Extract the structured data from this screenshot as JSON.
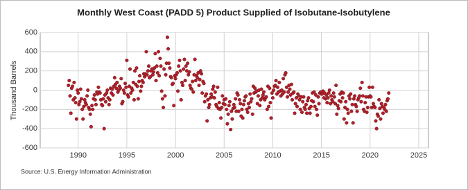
{
  "chart_data": {
    "type": "scatter",
    "title": "Monthly West Coast (PADD 5) Product Supplied of Isobutane-Isobutylene",
    "y_label": "Thousand Barrels",
    "source": "Source: U.S. Energy Information Administration",
    "color": "#b3202a",
    "grid": true,
    "xlim": [
      1986.1,
      2026
    ],
    "xticks": [
      1990,
      1995,
      2000,
      2005,
      2010,
      2015,
      2020,
      2025
    ],
    "ylim": [
      -600,
      600
    ],
    "yticks": [
      -600,
      -400,
      -200,
      0,
      200,
      400,
      600
    ],
    "x": [
      1989,
      1989.08,
      1989.17,
      1989.25,
      1989.33,
      1989.42,
      1989.5,
      1989.58,
      1989.67,
      1989.75,
      1989.83,
      1989.92,
      1990,
      1990.08,
      1990.17,
      1990.25,
      1990.33,
      1990.42,
      1990.5,
      1990.58,
      1990.67,
      1990.75,
      1990.83,
      1990.92,
      1991,
      1991.08,
      1991.17,
      1991.25,
      1991.33,
      1991.42,
      1991.5,
      1991.58,
      1991.67,
      1991.75,
      1991.83,
      1991.92,
      1992,
      1992.08,
      1992.17,
      1992.25,
      1992.33,
      1992.42,
      1992.5,
      1992.58,
      1992.67,
      1992.75,
      1992.83,
      1992.92,
      1993,
      1993.08,
      1993.17,
      1993.25,
      1993.33,
      1993.42,
      1993.5,
      1993.58,
      1993.67,
      1993.75,
      1993.83,
      1993.92,
      1994,
      1994.08,
      1994.17,
      1994.25,
      1994.33,
      1994.42,
      1994.5,
      1994.58,
      1994.67,
      1994.75,
      1994.83,
      1994.92,
      1995,
      1995.08,
      1995.17,
      1995.25,
      1995.33,
      1995.42,
      1995.5,
      1995.58,
      1995.67,
      1995.75,
      1995.83,
      1995.92,
      1996,
      1996.08,
      1996.17,
      1996.25,
      1996.33,
      1996.42,
      1996.5,
      1996.58,
      1996.67,
      1996.75,
      1996.83,
      1996.92,
      1997,
      1997.08,
      1997.17,
      1997.25,
      1997.33,
      1997.42,
      1997.5,
      1997.58,
      1997.67,
      1997.75,
      1997.83,
      1997.92,
      1998,
      1998.08,
      1998.17,
      1998.25,
      1998.33,
      1998.42,
      1998.5,
      1998.58,
      1998.67,
      1998.75,
      1998.83,
      1998.92,
      1999,
      1999.08,
      1999.17,
      1999.25,
      1999.33,
      1999.42,
      1999.5,
      1999.58,
      1999.67,
      1999.75,
      1999.83,
      1999.92,
      2000,
      2000.08,
      2000.17,
      2000.25,
      2000.33,
      2000.42,
      2000.5,
      2000.58,
      2000.67,
      2000.75,
      2000.83,
      2000.92,
      2001,
      2001.08,
      2001.17,
      2001.25,
      2001.33,
      2001.42,
      2001.5,
      2001.58,
      2001.67,
      2001.75,
      2001.83,
      2001.92,
      2002,
      2002.08,
      2002.17,
      2002.25,
      2002.33,
      2002.42,
      2002.5,
      2002.58,
      2002.67,
      2002.75,
      2002.83,
      2002.92,
      2003,
      2003.08,
      2003.17,
      2003.25,
      2003.33,
      2003.42,
      2003.5,
      2003.58,
      2003.67,
      2003.75,
      2003.83,
      2003.92,
      2004,
      2004.08,
      2004.17,
      2004.25,
      2004.33,
      2004.42,
      2004.5,
      2004.58,
      2004.67,
      2004.75,
      2004.83,
      2004.92,
      2005,
      2005.08,
      2005.17,
      2005.25,
      2005.33,
      2005.42,
      2005.5,
      2005.58,
      2005.67,
      2005.75,
      2005.83,
      2005.92,
      2006,
      2006.08,
      2006.17,
      2006.25,
      2006.33,
      2006.42,
      2006.5,
      2006.58,
      2006.67,
      2006.75,
      2006.83,
      2006.92,
      2007,
      2007.08,
      2007.17,
      2007.25,
      2007.33,
      2007.42,
      2007.5,
      2007.58,
      2007.67,
      2007.75,
      2007.83,
      2007.92,
      2008,
      2008.08,
      2008.17,
      2008.25,
      2008.33,
      2008.42,
      2008.5,
      2008.58,
      2008.67,
      2008.75,
      2008.83,
      2008.92,
      2009,
      2009.08,
      2009.17,
      2009.25,
      2009.33,
      2009.42,
      2009.5,
      2009.58,
      2009.67,
      2009.75,
      2009.83,
      2009.92,
      2010,
      2010.08,
      2010.17,
      2010.25,
      2010.33,
      2010.42,
      2010.5,
      2010.58,
      2010.67,
      2010.75,
      2010.83,
      2010.92,
      2011,
      2011.08,
      2011.17,
      2011.25,
      2011.33,
      2011.42,
      2011.5,
      2011.58,
      2011.67,
      2011.75,
      2011.83,
      2011.92,
      2012,
      2012.08,
      2012.17,
      2012.25,
      2012.33,
      2012.42,
      2012.5,
      2012.58,
      2012.67,
      2012.75,
      2012.83,
      2012.92,
      2013,
      2013.08,
      2013.17,
      2013.25,
      2013.33,
      2013.42,
      2013.5,
      2013.58,
      2013.67,
      2013.75,
      2013.83,
      2013.92,
      2014,
      2014.08,
      2014.17,
      2014.25,
      2014.33,
      2014.42,
      2014.5,
      2014.58,
      2014.67,
      2014.75,
      2014.83,
      2014.92,
      2015,
      2015.08,
      2015.17,
      2015.25,
      2015.33,
      2015.42,
      2015.5,
      2015.58,
      2015.67,
      2015.75,
      2015.83,
      2015.92,
      2016,
      2016.08,
      2016.17,
      2016.25,
      2016.33,
      2016.42,
      2016.5,
      2016.58,
      2016.67,
      2016.75,
      2016.83,
      2016.92,
      2017,
      2017.08,
      2017.17,
      2017.25,
      2017.33,
      2017.42,
      2017.5,
      2017.58,
      2017.67,
      2017.75,
      2017.83,
      2017.92,
      2018,
      2018.08,
      2018.17,
      2018.25,
      2018.33,
      2018.42,
      2018.5,
      2018.58,
      2018.67,
      2018.75,
      2018.83,
      2018.92,
      2019,
      2019.08,
      2019.17,
      2019.25,
      2019.33,
      2019.42,
      2019.5,
      2019.58,
      2019.67,
      2019.75,
      2019.83,
      2019.92,
      2020,
      2020.08,
      2020.17,
      2020.25,
      2020.33,
      2020.42,
      2020.5,
      2020.58,
      2020.67,
      2020.75,
      2020.83,
      2020.92,
      2021,
      2021.08,
      2021.17,
      2021.25,
      2021.33,
      2021.42,
      2021.5,
      2021.58,
      2021.67,
      2021.75,
      2021.83,
      2021.92
    ],
    "values": [
      50,
      100,
      -60,
      -240,
      20,
      40,
      -100,
      80,
      -80,
      -130,
      -300,
      0,
      -30,
      -150,
      -120,
      10,
      -90,
      -200,
      -300,
      -170,
      -100,
      -130,
      -150,
      -60,
      0,
      -180,
      -200,
      -250,
      -380,
      -160,
      -200,
      -90,
      -50,
      -100,
      -150,
      -20,
      -40,
      30,
      -20,
      -30,
      -100,
      -150,
      -160,
      -90,
      -400,
      -50,
      -120,
      -30,
      0,
      -80,
      -150,
      -100,
      20,
      -30,
      10,
      -50,
      40,
      130,
      60,
      20,
      80,
      -20,
      0,
      40,
      20,
      120,
      -140,
      -120,
      0,
      -30,
      70,
      30,
      310,
      -50,
      -70,
      40,
      220,
      -30,
      20,
      0,
      80,
      -100,
      200,
      60,
      230,
      40,
      -90,
      90,
      150,
      -10,
      40,
      100,
      80,
      170,
      140,
      170,
      400,
      160,
      200,
      250,
      130,
      140,
      200,
      220,
      160,
      190,
      230,
      380,
      100,
      250,
      180,
      400,
      150,
      330,
      250,
      -10,
      -90,
      -180,
      220,
      -60,
      160,
      280,
      550,
      430,
      280,
      230,
      140,
      130,
      60,
      70,
      -160,
      150,
      120,
      160,
      180,
      -10,
      250,
      310,
      200,
      -100,
      80,
      50,
      220,
      320,
      100,
      250,
      200,
      280,
      160,
      190,
      50,
      20,
      10,
      90,
      -20,
      160,
      320,
      100,
      150,
      130,
      180,
      50,
      110,
      200,
      170,
      -30,
      90,
      70,
      -120,
      -60,
      -40,
      -320,
      -100,
      -180,
      -150,
      -80,
      -40,
      -70,
      10,
      40,
      -80,
      -20,
      -150,
      -170,
      30,
      -190,
      -130,
      -200,
      -290,
      -180,
      -60,
      -140,
      -100,
      -150,
      -90,
      -200,
      -350,
      -250,
      -160,
      -120,
      -410,
      -220,
      -300,
      -190,
      -150,
      -180,
      -90,
      -220,
      -30,
      -50,
      -220,
      -100,
      -140,
      -270,
      -200,
      -290,
      -150,
      -110,
      -70,
      -60,
      -200,
      -230,
      -140,
      -180,
      -40,
      -120,
      -90,
      -250,
      40,
      -30,
      20,
      -20,
      -10,
      -140,
      -60,
      0,
      -160,
      -100,
      10,
      -80,
      -50,
      -20,
      -100,
      -80,
      -70,
      -200,
      40,
      -170,
      20,
      -130,
      -290,
      -30,
      -80,
      0,
      40,
      50,
      100,
      -40,
      30,
      -20,
      80,
      -10,
      -60,
      0,
      -40,
      120,
      -20,
      160,
      180,
      30,
      -70,
      -20,
      50,
      10,
      -50,
      60,
      -100,
      -30,
      -20,
      -240,
      -140,
      -80,
      -170,
      -40,
      -60,
      -100,
      -200,
      -70,
      -230,
      -120,
      -70,
      -180,
      -200,
      -150,
      -240,
      -110,
      -80,
      -190,
      -240,
      -170,
      -110,
      -30,
      -120,
      -20,
      -170,
      -50,
      -200,
      -260,
      -70,
      -140,
      -30,
      -20,
      -40,
      -40,
      -10,
      -80,
      -30,
      -90,
      -50,
      -130,
      -80,
      -30,
      0,
      -140,
      -60,
      -100,
      -120,
      -30,
      -70,
      -140,
      50,
      -250,
      -160,
      -190,
      -110,
      -40,
      -120,
      -20,
      -80,
      -30,
      -300,
      -180,
      -120,
      -340,
      -200,
      -240,
      -60,
      -90,
      -40,
      -220,
      -150,
      -340,
      -90,
      -60,
      -150,
      -170,
      -220,
      -100,
      -80,
      -60,
      20,
      -120,
      80,
      -60,
      -200,
      -220,
      -130,
      -70,
      -230,
      -180,
      -70,
      30,
      -60,
      -70,
      -180,
      30,
      -140,
      -170,
      -180,
      -320,
      -400,
      -250,
      -270,
      -100,
      -190,
      -300,
      -140,
      -170,
      -240,
      -180,
      -200,
      -150,
      -220,
      -110,
      -90,
      -30
    ]
  }
}
